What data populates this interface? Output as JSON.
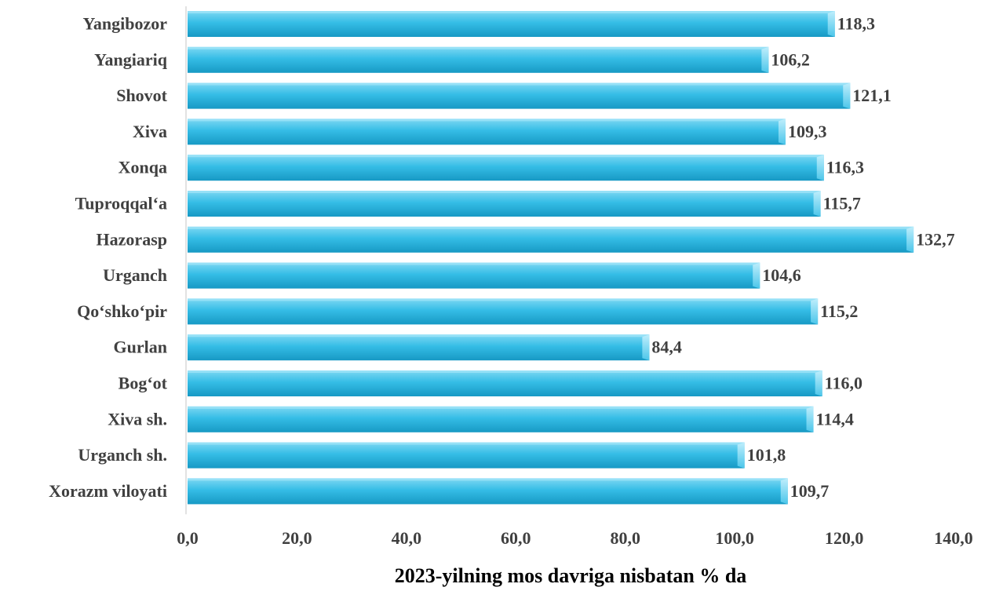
{
  "chart_data": {
    "type": "bar",
    "orientation": "horizontal",
    "categories": [
      "Yangibozor",
      "Yangiariq",
      "Shovot",
      "Xiva",
      "Xonqa",
      "Tuproqqal‘a",
      "Hazorasp",
      "Urganch",
      "Qo‘shko‘pir",
      "Gurlan",
      "Bog‘ot",
      "Xiva sh.",
      "Urganch sh.",
      "Xorazm viloyati"
    ],
    "values": [
      118.3,
      106.2,
      121.1,
      109.3,
      116.3,
      115.7,
      132.7,
      104.6,
      115.2,
      84.4,
      116.0,
      114.4,
      101.8,
      109.7
    ],
    "value_labels": [
      "118,3",
      "106,2",
      "121,1",
      "109,3",
      "116,3",
      "115,7",
      "132,7",
      "104,6",
      "115,2",
      "84,4",
      "116,0",
      "114,4",
      "101,8",
      "109,7"
    ],
    "xlim": [
      0,
      140
    ],
    "xticks": [
      0,
      20,
      40,
      60,
      80,
      100,
      120,
      140
    ],
    "xtick_labels": [
      "0,0",
      "20,0",
      "40,0",
      "60,0",
      "80,0",
      "100,0",
      "120,0",
      "140,0"
    ],
    "xlabel": "2023-yilning mos davriga nisbatan % da",
    "ylabel": "",
    "title": "",
    "grid": false,
    "legend": "none",
    "bar_color": "#2bb3dd"
  }
}
